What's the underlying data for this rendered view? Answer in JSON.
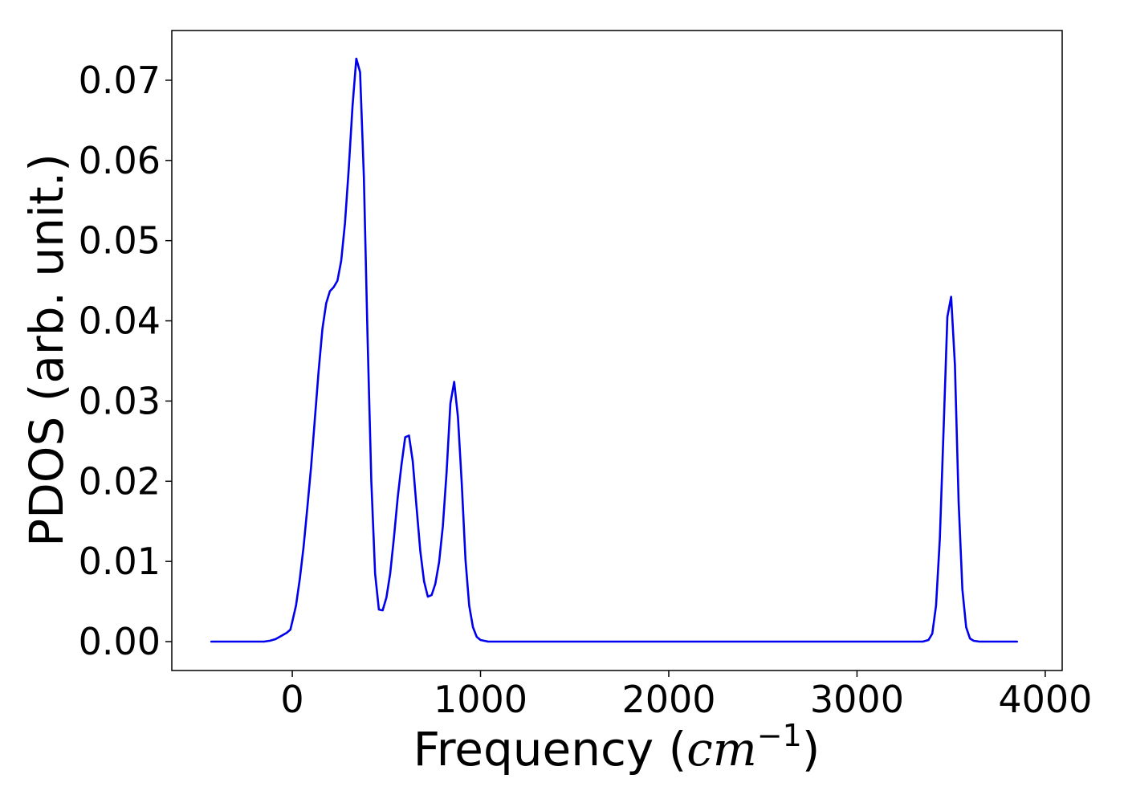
{
  "chart_data": {
    "type": "line",
    "title": "",
    "xlabel_prefix": "Frequency (",
    "xlabel_italic": "cm",
    "xlabel_superscript": "−1",
    "xlabel_suffix": ")",
    "ylabel": "PDOS (arb. unit.)",
    "xlim": [
      -640,
      4090
    ],
    "ylim": [
      -0.0036,
      0.0762
    ],
    "xticks": [
      0,
      1000,
      2000,
      3000,
      4000
    ],
    "xtick_labels": [
      "0",
      "1000",
      "2000",
      "3000",
      "4000"
    ],
    "yticks": [
      0.0,
      0.01,
      0.02,
      0.03,
      0.04,
      0.05,
      0.06,
      0.07
    ],
    "ytick_labels": [
      "0.00",
      "0.01",
      "0.02",
      "0.03",
      "0.04",
      "0.05",
      "0.06",
      "0.07"
    ],
    "grid": false,
    "legend": false,
    "series": [
      {
        "color": "#0000ee",
        "x": [
          -430,
          -300,
          -200,
          -150,
          -120,
          -90,
          -60,
          -30,
          -10,
          0,
          20,
          40,
          60,
          80,
          100,
          120,
          140,
          160,
          180,
          200,
          220,
          240,
          260,
          280,
          300,
          320,
          340,
          360,
          380,
          400,
          420,
          440,
          460,
          480,
          500,
          520,
          540,
          560,
          580,
          600,
          620,
          640,
          660,
          680,
          700,
          720,
          740,
          760,
          780,
          800,
          820,
          840,
          860,
          880,
          900,
          920,
          940,
          960,
          980,
          1000,
          1020,
          1040,
          1060,
          1080,
          1100,
          1200,
          1500,
          2000,
          2500,
          3000,
          3300,
          3350,
          3380,
          3400,
          3420,
          3440,
          3460,
          3480,
          3500,
          3520,
          3540,
          3560,
          3580,
          3600,
          3620,
          3650,
          3700,
          3850
        ],
        "y": [
          0.0,
          0.0,
          0.0,
          0.0,
          0.0001,
          0.0003,
          0.0007,
          0.0011,
          0.0015,
          0.0025,
          0.0045,
          0.0078,
          0.0118,
          0.0167,
          0.0218,
          0.0278,
          0.0338,
          0.039,
          0.0422,
          0.0437,
          0.0442,
          0.045,
          0.0475,
          0.0522,
          0.059,
          0.0668,
          0.0727,
          0.071,
          0.058,
          0.038,
          0.02,
          0.0085,
          0.004,
          0.0039,
          0.0055,
          0.0085,
          0.013,
          0.018,
          0.022,
          0.0255,
          0.0257,
          0.0225,
          0.0168,
          0.0113,
          0.0075,
          0.0056,
          0.0058,
          0.0072,
          0.0099,
          0.0144,
          0.0212,
          0.0297,
          0.0324,
          0.028,
          0.0198,
          0.0102,
          0.0045,
          0.0018,
          0.0006,
          0.0002,
          0.0001,
          0.0,
          0.0,
          0.0,
          0.0,
          0.0,
          0.0,
          0.0,
          0.0,
          0.0,
          0.0,
          0.0,
          0.0002,
          0.001,
          0.0045,
          0.0128,
          0.0265,
          0.0405,
          0.043,
          0.0345,
          0.0175,
          0.0065,
          0.0018,
          0.0004,
          0.0001,
          0.0,
          0.0,
          0.0
        ]
      }
    ]
  }
}
